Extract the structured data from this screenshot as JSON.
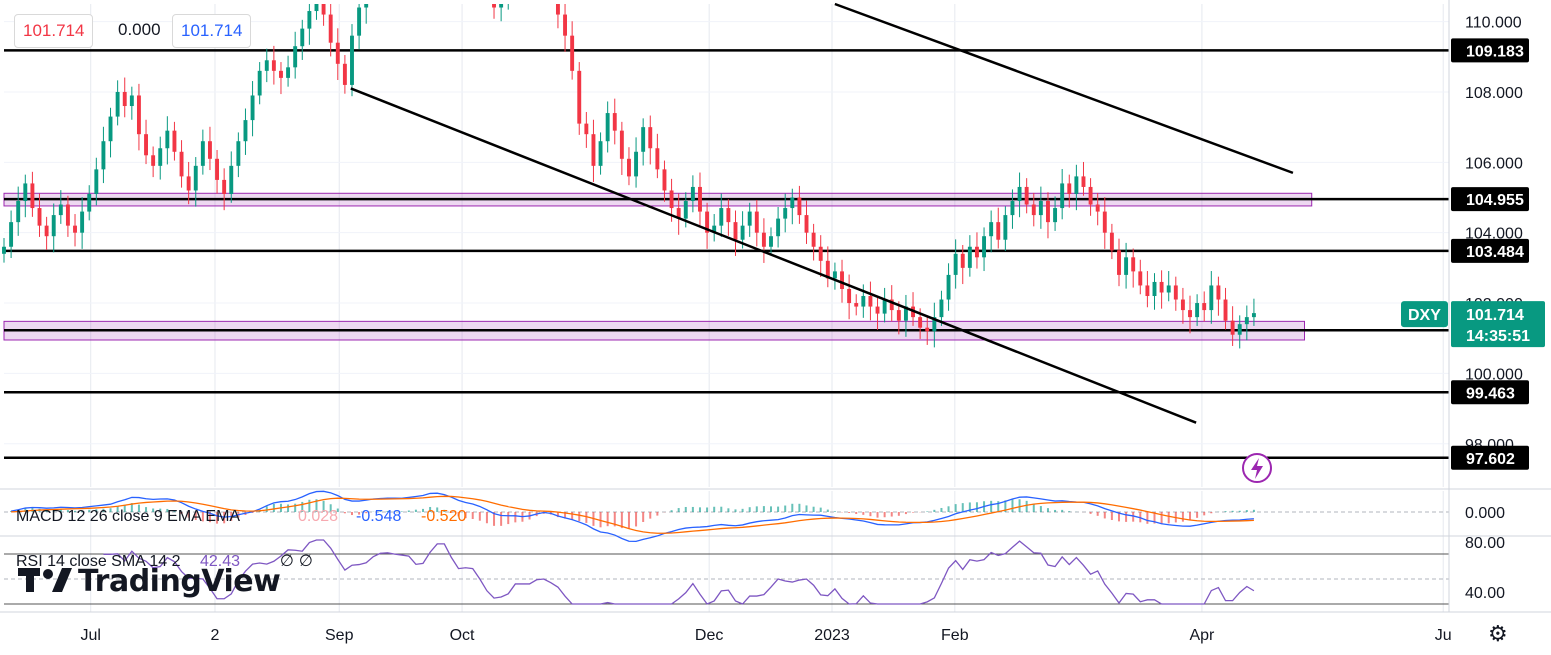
{
  "ohlc": {
    "open": "101.714",
    "change": "0.000",
    "close": "101.714"
  },
  "chart_data": {
    "type": "candlestick",
    "symbol": "DXY",
    "last_price": "101.714",
    "countdown": "14:35:51",
    "ylim": [
      96.8,
      110.5
    ],
    "yticks": [
      "110.000",
      "108.000",
      "106.000",
      "104.000",
      "102.000",
      "100.000",
      "98.000"
    ],
    "xticks": [
      {
        "label": "Jul",
        "pos": 0.06
      },
      {
        "label": "2",
        "pos": 0.146
      },
      {
        "label": "Sep",
        "pos": 0.232
      },
      {
        "label": "Oct",
        "pos": 0.317
      },
      {
        "label": "Dec",
        "pos": 0.488
      },
      {
        "label": "2023",
        "pos": 0.573
      },
      {
        "label": "Feb",
        "pos": 0.658
      },
      {
        "label": "Apr",
        "pos": 0.829
      },
      {
        "label": "Ju",
        "pos": 0.996
      }
    ],
    "levels": [
      {
        "label": "109.183",
        "value": 109.183
      },
      {
        "label": "104.955",
        "value": 104.955
      },
      {
        "label": "103.484",
        "value": 103.484
      },
      {
        "label": "101.227",
        "value": 101.227
      },
      {
        "label": "99.463",
        "value": 99.463
      },
      {
        "label": "97.602",
        "value": 97.602
      }
    ],
    "zones": [
      {
        "from": 104.76,
        "to": 105.12,
        "t_end": 0.905
      },
      {
        "from": 100.95,
        "to": 101.48,
        "t_end": 0.9
      }
    ],
    "trendlines": [
      {
        "t1": 0.24,
        "v1": 108.1,
        "t2": 0.825,
        "v2": 98.6
      },
      {
        "t1": 0.575,
        "v1": 110.5,
        "t2": 0.892,
        "v2": 105.7
      }
    ],
    "closes": [
      103.6,
      104.3,
      104.9,
      105.4,
      104.7,
      104.2,
      103.9,
      104.5,
      104.8,
      104.2,
      104.0,
      104.6,
      105.1,
      105.8,
      106.6,
      107.3,
      108.0,
      107.6,
      107.9,
      106.8,
      106.2,
      105.9,
      106.4,
      106.9,
      106.3,
      105.6,
      105.2,
      105.9,
      106.6,
      106.1,
      105.5,
      105.1,
      105.9,
      106.6,
      107.2,
      107.9,
      108.6,
      108.9,
      108.6,
      108.4,
      108.7,
      109.3,
      109.8,
      110.3,
      110.7,
      110.2,
      109.4,
      108.8,
      108.2,
      109.6,
      110.4,
      111.0,
      111.6,
      111.9,
      112.3,
      112.6,
      112.9,
      113.2,
      112.6,
      112.2,
      112.7,
      112.9,
      112.3,
      111.8,
      111.4,
      112.1,
      112.6,
      111.9,
      111.0,
      110.4,
      110.8,
      111.4,
      112.0,
      111.6,
      112.1,
      112.8,
      112.3,
      111.3,
      110.2,
      109.6,
      108.6,
      107.1,
      106.8,
      105.9,
      106.6,
      107.4,
      106.9,
      106.1,
      105.6,
      106.3,
      107.0,
      106.4,
      105.8,
      105.2,
      104.7,
      104.4,
      104.9,
      105.3,
      104.6,
      104.0,
      104.2,
      104.7,
      104.3,
      103.8,
      104.2,
      104.6,
      104.0,
      103.6,
      103.9,
      104.4,
      104.7,
      105.0,
      104.5,
      104.0,
      103.6,
      103.2,
      102.7,
      102.9,
      102.4,
      102.0,
      101.9,
      102.2,
      101.9,
      101.7,
      102.1,
      101.8,
      101.5,
      101.9,
      101.6,
      101.3,
      101.2,
      101.6,
      102.1,
      102.8,
      103.4,
      103.0,
      103.6,
      103.3,
      103.9,
      104.3,
      103.8,
      104.5,
      104.9,
      105.3,
      104.8,
      104.5,
      104.9,
      104.3,
      104.7,
      105.4,
      105.1,
      105.6,
      105.3,
      104.8,
      104.6,
      104.0,
      103.5,
      102.8,
      103.3,
      102.9,
      102.5,
      102.2,
      102.6,
      102.3,
      102.5,
      102.1,
      101.8,
      101.6,
      102.0,
      101.8,
      102.5,
      102.1,
      101.5,
      101.1,
      101.4,
      101.6,
      101.714
    ],
    "macd": {
      "label": "MACD 12 26 close 9 EMA EMA",
      "hist": "0.028",
      "macd": "-0.548",
      "signal": "-0.520",
      "yticks": [
        "0.000"
      ]
    },
    "rsi": {
      "label": "RSI 14 close SMA 14 2",
      "value": "42.43",
      "extra": "∅ ∅",
      "yticks": [
        "80.00",
        "40.00"
      ],
      "bands": [
        70,
        50,
        30
      ]
    },
    "colors": {
      "up": "#089981",
      "down": "#f23645",
      "zone": "#9c27b0",
      "macd": "#2962ff",
      "signal": "#ff6d00",
      "rsi": "#7e57c2",
      "price_label": "#089981"
    }
  },
  "watermark": "TradingView",
  "icons": {
    "settings": "gear-icon",
    "alert": "lightning-icon"
  }
}
